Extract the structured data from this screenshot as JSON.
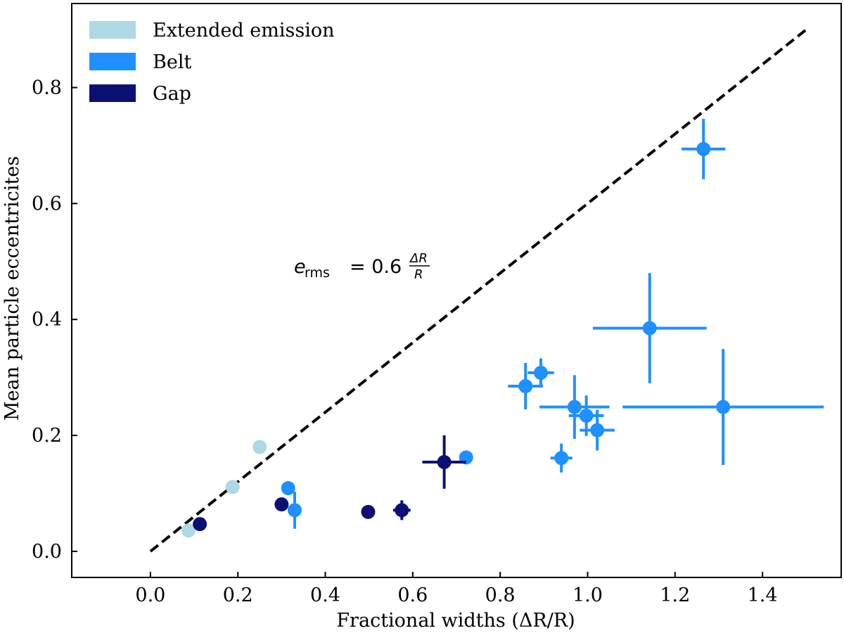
{
  "chart_data": {
    "type": "scatter",
    "title": "",
    "xlabel": "Fractional widths (ΔR/R)",
    "ylabel": "Mean particle eccentricites",
    "xlim": [
      -0.18,
      1.58
    ],
    "ylim": [
      -0.045,
      0.945
    ],
    "xticks": [
      0.0,
      0.2,
      0.4,
      0.6,
      0.8,
      1.0,
      1.2,
      1.4
    ],
    "xtick_labels": [
      "0.0",
      "0.2",
      "0.4",
      "0.6",
      "0.8",
      "1.0",
      "1.2",
      "1.4"
    ],
    "yticks": [
      0.0,
      0.2,
      0.4,
      0.6,
      0.8
    ],
    "ytick_labels": [
      "0.0",
      "0.2",
      "0.4",
      "0.6",
      "0.8"
    ],
    "legend_position": "top-left",
    "annotation": {
      "e": "e",
      "sub": "rms",
      "eq": "= 0.6",
      "num": "ΔR",
      "den": "R"
    },
    "reference_line": {
      "name": "e_rms = 0.6 ΔR/R",
      "slope": 0.6,
      "x": [
        0.0,
        1.5
      ],
      "style": "dashed",
      "color": "#000000"
    },
    "series": [
      {
        "name": "Extended emission",
        "color": "#add8e6",
        "points": [
          {
            "x": 0.087,
            "y": 0.036,
            "xerr": 0,
            "yerr": 0
          },
          {
            "x": 0.188,
            "y": 0.111,
            "xerr": 0,
            "yerr": 0
          },
          {
            "x": 0.25,
            "y": 0.18,
            "xerr": 0,
            "yerr": 0
          }
        ]
      },
      {
        "name": "Belt",
        "color": "#1e90ff",
        "points": [
          {
            "x": 0.315,
            "y": 0.109,
            "xerr": 0,
            "yerr": 0
          },
          {
            "x": 0.33,
            "y": 0.071,
            "xerr": 0,
            "yerr": 0.032
          },
          {
            "x": 0.722,
            "y": 0.162,
            "xerr": 0,
            "yerr": 0
          },
          {
            "x": 0.858,
            "y": 0.285,
            "xerr": 0.04,
            "yerr": 0.04
          },
          {
            "x": 0.893,
            "y": 0.308,
            "xerr": 0.03,
            "yerr": 0.025
          },
          {
            "x": 0.94,
            "y": 0.161,
            "xerr": 0.025,
            "yerr": 0.025
          },
          {
            "x": 0.97,
            "y": 0.249,
            "xerr": 0.08,
            "yerr": 0.055
          },
          {
            "x": 0.997,
            "y": 0.234,
            "xerr": 0.04,
            "yerr": 0.035
          },
          {
            "x": 1.022,
            "y": 0.209,
            "xerr": 0.04,
            "yerr": 0.035
          },
          {
            "x": 1.142,
            "y": 0.385,
            "xerr": 0.13,
            "yerr": 0.095
          },
          {
            "x": 1.265,
            "y": 0.694,
            "xerr": 0.05,
            "yerr": 0.052
          },
          {
            "x": 1.31,
            "y": 0.249,
            "xerr": 0.23,
            "yerr": 0.1
          }
        ]
      },
      {
        "name": "Gap",
        "color": "#0a1172",
        "points": [
          {
            "x": 0.113,
            "y": 0.047,
            "xerr": 0,
            "yerr": 0
          },
          {
            "x": 0.3,
            "y": 0.081,
            "xerr": 0,
            "yerr": 0
          },
          {
            "x": 0.498,
            "y": 0.068,
            "xerr": 0,
            "yerr": 0
          },
          {
            "x": 0.575,
            "y": 0.071,
            "xerr": 0.02,
            "yerr": 0.017
          },
          {
            "x": 0.672,
            "y": 0.154,
            "xerr": 0.05,
            "yerr": 0.046
          }
        ]
      }
    ]
  }
}
